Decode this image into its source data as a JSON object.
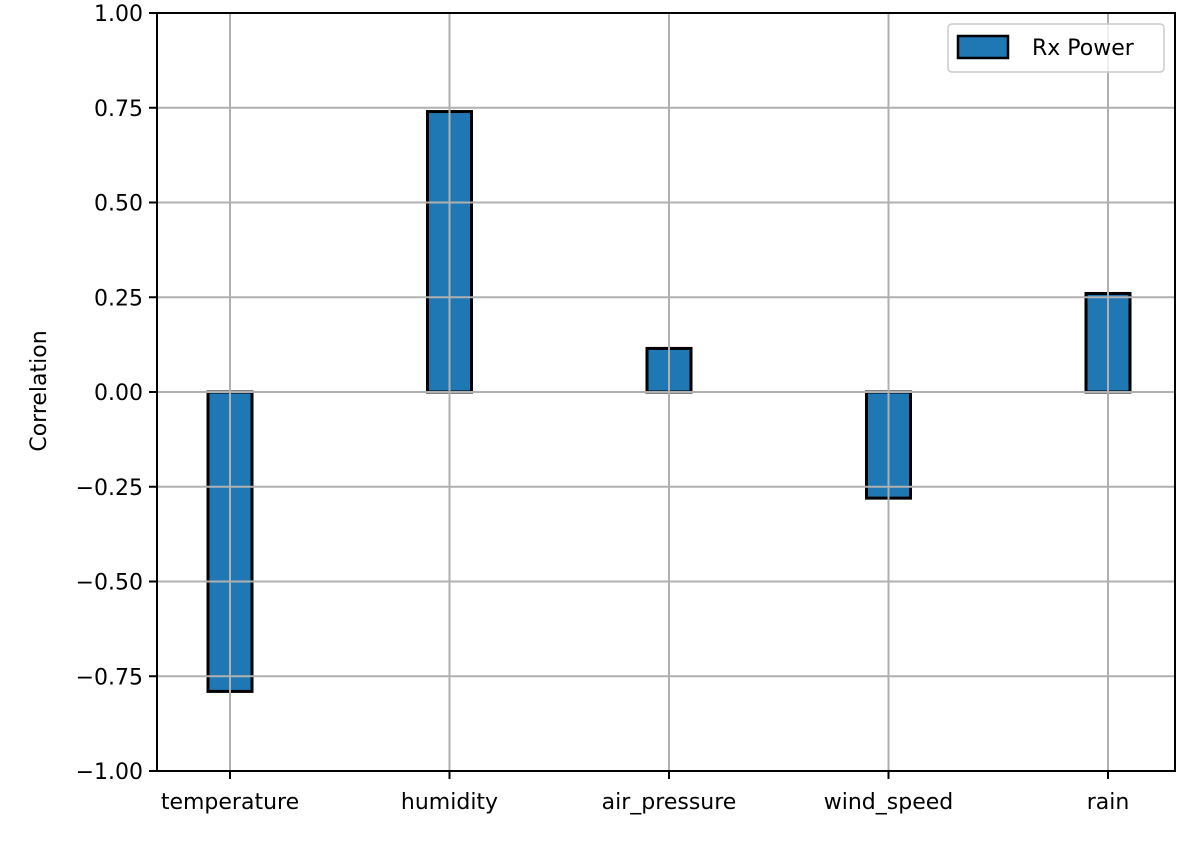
{
  "chart_data": {
    "type": "bar",
    "title": "",
    "xlabel": "",
    "ylabel": "Correlation",
    "categories": [
      "temperature",
      "humidity",
      "air_pressure",
      "wind_speed",
      "rain"
    ],
    "series": [
      {
        "name": "Rx Power",
        "values": [
          -0.79,
          0.74,
          0.115,
          -0.28,
          0.26
        ]
      }
    ],
    "ylim": [
      -1.0,
      1.0
    ],
    "yticks": [
      -1.0,
      -0.75,
      -0.5,
      -0.25,
      0.0,
      0.25,
      0.5,
      0.75,
      1.0
    ],
    "ytick_labels": [
      "−1.00",
      "−0.75",
      "−0.50",
      "−0.25",
      "0.00",
      "0.25",
      "0.50",
      "0.75",
      "1.00"
    ],
    "grid": true,
    "legend_position": "top-right",
    "colors": {
      "bar": "#1f77b4",
      "edge": "#000000",
      "grid": "#b0b0b0"
    }
  }
}
